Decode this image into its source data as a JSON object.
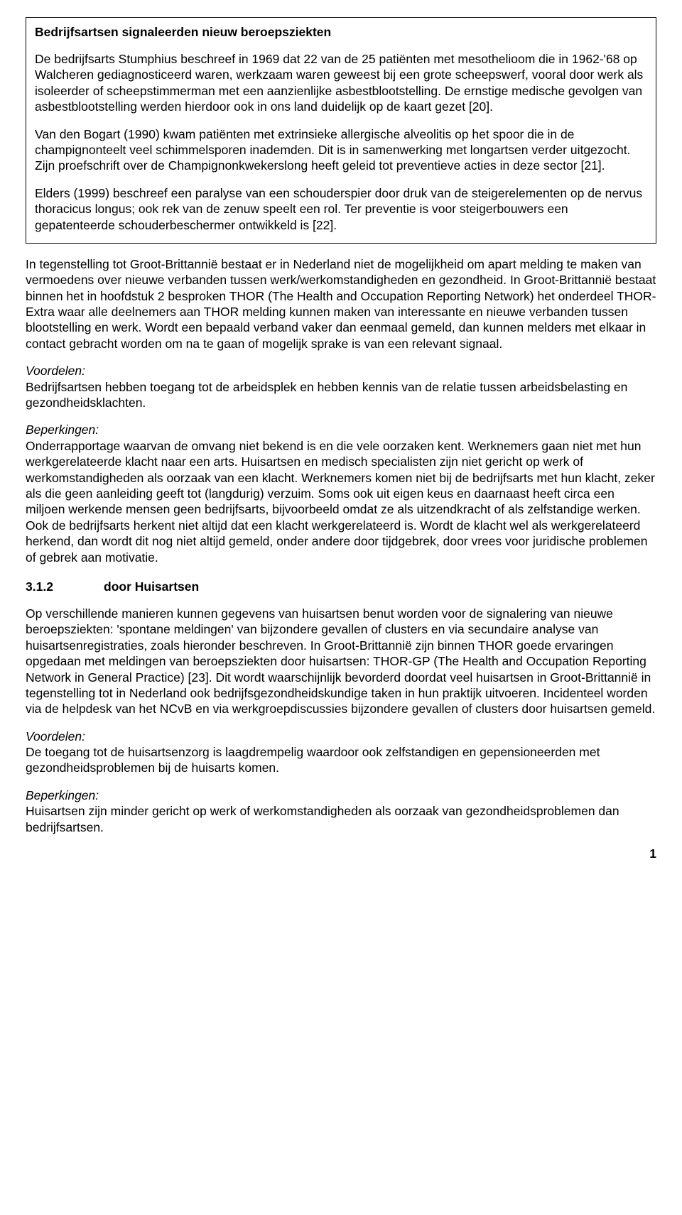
{
  "box": {
    "title": "Bedrijfsartsen signaleerden nieuw beroepsziekten",
    "p1": "De bedrijfsarts Stumphius beschreef in 1969 dat 22 van de 25 patiënten met mesothelioom die in 1962-'68 op Walcheren gediagnosticeerd waren, werkzaam waren geweest bij een grote scheepswerf, vooral door werk als isoleerder of scheepstimmerman met een aanzienlijke asbestblootstelling. De ernstige medische gevolgen van asbestblootstelling werden hierdoor ook in ons land duidelijk op de kaart gezet [20].",
    "p2": "Van den Bogart (1990) kwam patiënten met extrinsieke allergische alveolitis op het spoor die in de champignonteelt veel schimmelsporen inademden. Dit is in samenwerking met longartsen verder uitgezocht. Zijn proefschrift over de Champignonkwekerslong heeft geleid tot preventieve acties in deze sector [21].",
    "p3": "Elders (1999) beschreef een paralyse van een schouderspier door druk van de steigerelementen op de nervus thoracicus longus; ook rek van de zenuw speelt een rol. Ter preventie is voor steigerbouwers een gepatenteerde schouderbeschermer ontwikkeld is [22]."
  },
  "body": {
    "p1": "In tegenstelling tot Groot-Brittannië bestaat er in Nederland niet de mogelijkheid om apart melding te maken van vermoedens over nieuwe verbanden tussen werk/werkomstandigheden en gezondheid. In Groot-Brittannië bestaat binnen het in hoofdstuk 2 besproken THOR (The Health and Occupation Reporting Network) het onderdeel THOR-Extra waar alle deelnemers aan THOR melding kunnen maken van interessante en nieuwe verbanden tussen blootstelling en werk. Wordt een bepaald verband vaker dan eenmaal gemeld, dan kunnen melders met elkaar in contact gebracht worden om na te gaan of mogelijk sprake is van een relevant signaal.",
    "voordelen_label": "Voordelen:",
    "voordelen_text": "Bedrijfsartsen hebben toegang tot de arbeidsplek en hebben kennis van de relatie tussen arbeidsbelasting en gezondheidsklachten.",
    "beperkingen_label": "Beperkingen:",
    "beperkingen_text": "Onderrapportage waarvan de omvang niet bekend is en die vele oorzaken kent. Werknemers gaan niet met hun werkgerelateerde klacht naar een arts. Huisartsen en medisch specialisten zijn niet gericht op werk of werkomstandigheden als oorzaak van een klacht. Werknemers komen niet bij de bedrijfsarts met hun klacht, zeker als die geen aanleiding geeft tot (langdurig) verzuim. Soms ook uit eigen keus en daarnaast heeft circa een miljoen werkende mensen geen bedrijfsarts, bijvoorbeeld omdat ze als uitzendkracht of als zelfstandige werken. Ook de bedrijfsarts herkent niet altijd dat een klacht werkgerelateerd is. Wordt de klacht wel als werkgerelateerd herkend, dan wordt dit nog niet altijd gemeld, onder andere door tijdgebrek, door vrees voor juridische problemen of gebrek aan motivatie."
  },
  "section": {
    "number": "3.1.2",
    "title": "door Huisartsen",
    "p1": "Op verschillende manieren kunnen gegevens van huisartsen benut worden voor de signalering van nieuwe beroepsziekten: 'spontane meldingen' van bijzondere gevallen of clusters en via secundaire analyse van huisartsenregistraties, zoals hieronder beschreven. In Groot-Brittannië zijn binnen THOR goede ervaringen opgedaan met meldingen van beroepsziekten door huisartsen: THOR-GP (The Health and Occupation Reporting Network in General Practice) [23]. Dit wordt waarschijnlijk bevorderd doordat veel huisartsen in Groot-Brittannië in tegenstelling tot in Nederland ook bedrijfsgezondheidskundige taken in hun praktijk uitvoeren. Incidenteel worden via de helpdesk van het NCvB en via werkgroepdiscussies bijzondere gevallen of clusters door huisartsen gemeld.",
    "voordelen_label": "Voordelen:",
    "voordelen_text": "De toegang tot de huisartsenzorg is laagdrempelig waardoor ook zelfstandigen en gepensioneerden met gezondheidsproblemen bij de huisarts komen.",
    "beperkingen_label": "Beperkingen:",
    "beperkingen_text": "Huisartsen zijn minder gericht op werk of werkomstandigheden als oorzaak van gezondheidsproblemen dan bedrijfsartsen."
  },
  "page_number": "1"
}
